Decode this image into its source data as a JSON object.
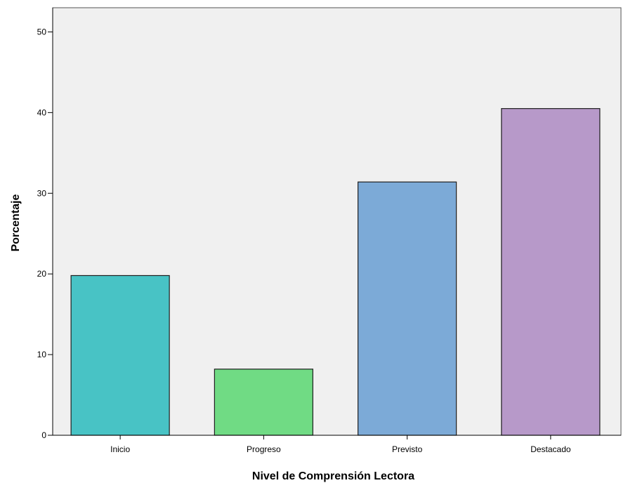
{
  "chart_data": {
    "type": "bar",
    "title": "",
    "xlabel": "Nivel de Comprensión Lectora",
    "ylabel": "Porcentaje",
    "categories": [
      "Inicio",
      "Progreso",
      "Previsto",
      "Destacado"
    ],
    "values": [
      19.8,
      8.2,
      31.4,
      40.5
    ],
    "colors": [
      "#48c3c5",
      "#70db84",
      "#7caad7",
      "#b799c9"
    ],
    "ylim": [
      0,
      53
    ],
    "yticks": [
      0,
      10,
      20,
      30,
      40,
      50
    ],
    "ytick_labels": [
      "0",
      "10",
      "20",
      "30",
      "40",
      "50"
    ],
    "grid": false,
    "legend": "none",
    "plot_background": "#f0f0f0",
    "bar_outline": "#1f1f1f"
  }
}
